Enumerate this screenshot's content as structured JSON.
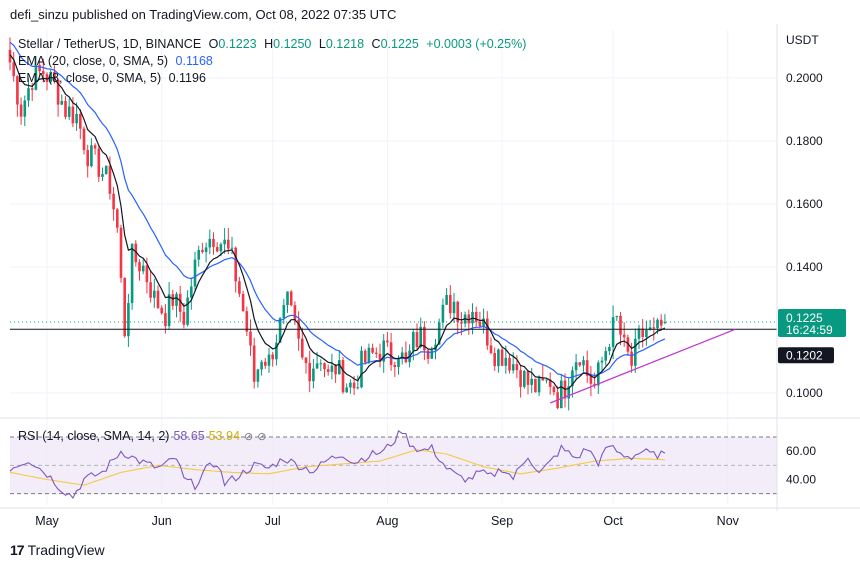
{
  "header": {
    "published_line": "defi_sinzu published on TradingView.com, Oct 08, 2022 07:35 UTC"
  },
  "legend": {
    "symbol": "Stellar / TetherUS, 1D, BINANCE",
    "o_label": "O",
    "o_value": "0.1223",
    "h_label": "H",
    "h_value": "0.1250",
    "l_label": "L",
    "l_value": "0.1218",
    "c_label": "C",
    "c_value": "0.1225",
    "change": "+0.0003 (+0.25%)",
    "ema20_label": "EMA (20, close, 0, SMA, 5)",
    "ema20_value": "0.1168",
    "ema8_label": "EMA (8, close, 0, SMA, 5)",
    "ema8_value": "0.1196"
  },
  "rsi_legend": {
    "label": "RSI (14, close, SMA, 14, 2)",
    "rsi_value": "58.65",
    "sma_value": "53.94",
    "icons": [
      "eye-off-icon",
      "eye-off-icon"
    ]
  },
  "footer": {
    "brand": "TradingView",
    "logo_text": "17"
  },
  "colors": {
    "up": "#089981",
    "down": "#f23645",
    "ema20": "#2962ff",
    "ema8": "#131722",
    "trendline": "#c03bd2",
    "rsi": "#7e57c2",
    "rsi_sma": "#f7c948",
    "rsi_band": "#ede7f6",
    "last_price_bg": "#089981",
    "support_bg": "#131722"
  },
  "chart_data": {
    "type": "candlestick",
    "price_axis": {
      "unit": "USDT",
      "ticks": [
        "0.1000",
        "0.1200",
        "0.1400",
        "0.1600",
        "0.1800",
        "0.2000"
      ],
      "ylim": [
        0.093,
        0.2152
      ]
    },
    "time_axis": {
      "labels": [
        "May",
        "Jun",
        "Jul",
        "Aug",
        "Sep",
        "Oct",
        "Nov"
      ],
      "label_day_index": [
        10,
        41,
        71,
        102,
        133,
        163,
        194
      ]
    },
    "last_price_label": "0.1225",
    "countdown_label": "16:24:59",
    "support_price_label": "0.1202",
    "support_level": 0.1202,
    "support_trendline": {
      "from": {
        "x_day": 146,
        "price": 0.0968
      },
      "to": {
        "x_day": 196,
        "price": 0.1202
      }
    },
    "candle_keyframes_close": [
      [
        0,
        0.205
      ],
      [
        3,
        0.19
      ],
      [
        6,
        0.2
      ],
      [
        9,
        0.202
      ],
      [
        12,
        0.198
      ],
      [
        15,
        0.19
      ],
      [
        18,
        0.188
      ],
      [
        21,
        0.176
      ],
      [
        24,
        0.172
      ],
      [
        27,
        0.166
      ],
      [
        29,
        0.152
      ],
      [
        30,
        0.135
      ],
      [
        31,
        0.12
      ],
      [
        33,
        0.143
      ],
      [
        36,
        0.14
      ],
      [
        39,
        0.13
      ],
      [
        42,
        0.125
      ],
      [
        44,
        0.13
      ],
      [
        47,
        0.124
      ],
      [
        50,
        0.14
      ],
      [
        52,
        0.148
      ],
      [
        55,
        0.15
      ],
      [
        58,
        0.147
      ],
      [
        60,
        0.142
      ],
      [
        62,
        0.132
      ],
      [
        64,
        0.12
      ],
      [
        66,
        0.104
      ],
      [
        68,
        0.112
      ],
      [
        70,
        0.11
      ],
      [
        72,
        0.118
      ],
      [
        75,
        0.128
      ],
      [
        77,
        0.12
      ],
      [
        79,
        0.11
      ],
      [
        81,
        0.108
      ],
      [
        84,
        0.112
      ],
      [
        86,
        0.105
      ],
      [
        88,
        0.108
      ],
      [
        91,
        0.103
      ],
      [
        93,
        0.102
      ],
      [
        95,
        0.109
      ],
      [
        98,
        0.112
      ],
      [
        101,
        0.114
      ],
      [
        103,
        0.111
      ],
      [
        105,
        0.114
      ],
      [
        107,
        0.108
      ],
      [
        109,
        0.116
      ],
      [
        111,
        0.118
      ],
      [
        113,
        0.115
      ],
      [
        116,
        0.122
      ],
      [
        118,
        0.128
      ],
      [
        120,
        0.129
      ],
      [
        122,
        0.124
      ],
      [
        125,
        0.127
      ],
      [
        128,
        0.121
      ],
      [
        131,
        0.113
      ],
      [
        134,
        0.112
      ],
      [
        137,
        0.108
      ],
      [
        140,
        0.103
      ],
      [
        143,
        0.101
      ],
      [
        146,
        0.104
      ],
      [
        148,
        0.099
      ],
      [
        150,
        0.102
      ],
      [
        152,
        0.11
      ],
      [
        154,
        0.113
      ],
      [
        156,
        0.106
      ],
      [
        158,
        0.102
      ],
      [
        160,
        0.11
      ],
      [
        162,
        0.118
      ],
      [
        164,
        0.123
      ],
      [
        166,
        0.114
      ],
      [
        168,
        0.109
      ],
      [
        170,
        0.117
      ],
      [
        172,
        0.12
      ],
      [
        174,
        0.118
      ],
      [
        177,
        0.1225
      ]
    ],
    "rsi": {
      "ticks": [
        "40.00",
        "60.00"
      ],
      "ylim": [
        22,
        82
      ],
      "band_upper": 70,
      "band_lower": 30,
      "mid": 50,
      "rsi_keyframes": [
        [
          0,
          48
        ],
        [
          5,
          54
        ],
        [
          10,
          44
        ],
        [
          14,
          33
        ],
        [
          17,
          28
        ],
        [
          20,
          40
        ],
        [
          25,
          45
        ],
        [
          30,
          60
        ],
        [
          35,
          53
        ],
        [
          40,
          48
        ],
        [
          45,
          55
        ],
        [
          47,
          40
        ],
        [
          50,
          36
        ],
        [
          53,
          47
        ],
        [
          56,
          52
        ],
        [
          58,
          37
        ],
        [
          62,
          43
        ],
        [
          66,
          50
        ],
        [
          70,
          48
        ],
        [
          74,
          55
        ],
        [
          78,
          50
        ],
        [
          82,
          46
        ],
        [
          86,
          54
        ],
        [
          90,
          58
        ],
        [
          93,
          52
        ],
        [
          97,
          57
        ],
        [
          101,
          60
        ],
        [
          104,
          68
        ],
        [
          106,
          75
        ],
        [
          108,
          66
        ],
        [
          111,
          60
        ],
        [
          114,
          62
        ],
        [
          118,
          48
        ],
        [
          121,
          42
        ],
        [
          124,
          40
        ],
        [
          127,
          45
        ],
        [
          130,
          42
        ],
        [
          133,
          48
        ],
        [
          136,
          41
        ],
        [
          140,
          57
        ],
        [
          143,
          44
        ],
        [
          146,
          52
        ],
        [
          149,
          62
        ],
        [
          153,
          55
        ],
        [
          156,
          62
        ],
        [
          159,
          52
        ],
        [
          162,
          64
        ],
        [
          165,
          58
        ],
        [
          168,
          56
        ],
        [
          171,
          60
        ],
        [
          174,
          57
        ],
        [
          177,
          58.65
        ]
      ],
      "sma_keyframes": [
        [
          0,
          45
        ],
        [
          10,
          40
        ],
        [
          20,
          36
        ],
        [
          30,
          45
        ],
        [
          40,
          50
        ],
        [
          50,
          47
        ],
        [
          60,
          45
        ],
        [
          70,
          44
        ],
        [
          80,
          49
        ],
        [
          90,
          51
        ],
        [
          100,
          53
        ],
        [
          110,
          61
        ],
        [
          118,
          58
        ],
        [
          128,
          49
        ],
        [
          138,
          44
        ],
        [
          148,
          48
        ],
        [
          158,
          53
        ],
        [
          168,
          55
        ],
        [
          177,
          53.94
        ]
      ]
    }
  }
}
